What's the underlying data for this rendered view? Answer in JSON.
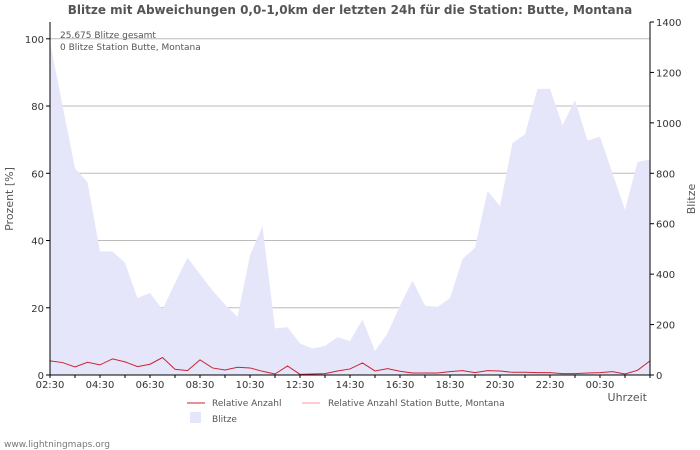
{
  "chart_data": {
    "type": "area",
    "title": "Blitze mit Abweichungen 0,0-1,0km der letzten 24h für die Station: Butte, Montana",
    "ylabel_left": "Prozent   [%]",
    "ylabel_right": "Blitze",
    "xlabel": "Uhrzeit",
    "ylim_left": [
      0,
      105
    ],
    "ylim_right": [
      0,
      1400
    ],
    "yticks_left": [
      "0",
      "20",
      "40",
      "60",
      "80",
      "100"
    ],
    "yticks_right": [
      "0",
      "200",
      "400",
      "600",
      "800",
      "1000",
      "1200",
      "1400"
    ],
    "x_tick_labels": [
      "02:30",
      "04:30",
      "06:30",
      "08:30",
      "10:30",
      "12:30",
      "14:30",
      "16:30",
      "18:30",
      "20:30",
      "22:30",
      "00:30"
    ],
    "annotations": [
      "25.675 Blitze gesamt",
      "0 Blitze Station Butte, Montana"
    ],
    "series": [
      {
        "name": "Blitze",
        "axis": "right",
        "color": "#e6e6fa",
        "values": [
          1320,
          1070,
          820,
          765,
          490,
          490,
          445,
          305,
          325,
          260,
          365,
          465,
          400,
          335,
          280,
          230,
          475,
          590,
          185,
          190,
          125,
          105,
          115,
          150,
          135,
          220,
          95,
          165,
          275,
          375,
          275,
          270,
          305,
          460,
          505,
          730,
          670,
          920,
          955,
          1135,
          1135,
          990,
          1090,
          930,
          945,
          800,
          655,
          845,
          855
        ]
      },
      {
        "name": "Relative Anzahl",
        "axis": "left",
        "color": "#cc2233",
        "values": [
          4.2,
          3.7,
          2.4,
          3.8,
          3.0,
          4.8,
          3.9,
          2.5,
          3.2,
          5.2,
          1.7,
          1.3,
          4.5,
          2.1,
          1.5,
          2.3,
          2.1,
          1.1,
          0.3,
          2.7,
          0.2,
          0.3,
          0.4,
          1.2,
          1.8,
          3.6,
          1.2,
          1.9,
          1.1,
          0.6,
          0.6,
          0.6,
          1.0,
          1.3,
          0.7,
          1.3,
          1.2,
          0.8,
          0.8,
          0.7,
          0.7,
          0.4,
          0.4,
          0.6,
          0.7,
          1.0,
          0.3,
          1.4,
          4.2
        ]
      },
      {
        "name": "Relative Anzahl Station Butte, Montana",
        "axis": "left",
        "color": "#ff9999",
        "values": [
          0,
          0,
          0,
          0,
          0,
          0,
          0,
          0,
          0,
          0,
          0,
          0,
          0,
          0,
          0,
          0,
          0,
          0,
          0,
          0,
          0,
          0,
          0,
          0,
          0,
          0,
          0,
          0,
          0,
          0,
          0,
          0,
          0,
          0,
          0,
          0,
          0,
          0,
          0,
          0,
          0,
          0,
          0,
          0,
          0,
          0,
          0,
          0,
          0
        ]
      }
    ],
    "legend": [
      "Relative Anzahl",
      "Relative Anzahl Station Butte, Montana",
      "Blitze"
    ]
  },
  "footer": "www.lightningmaps.org"
}
